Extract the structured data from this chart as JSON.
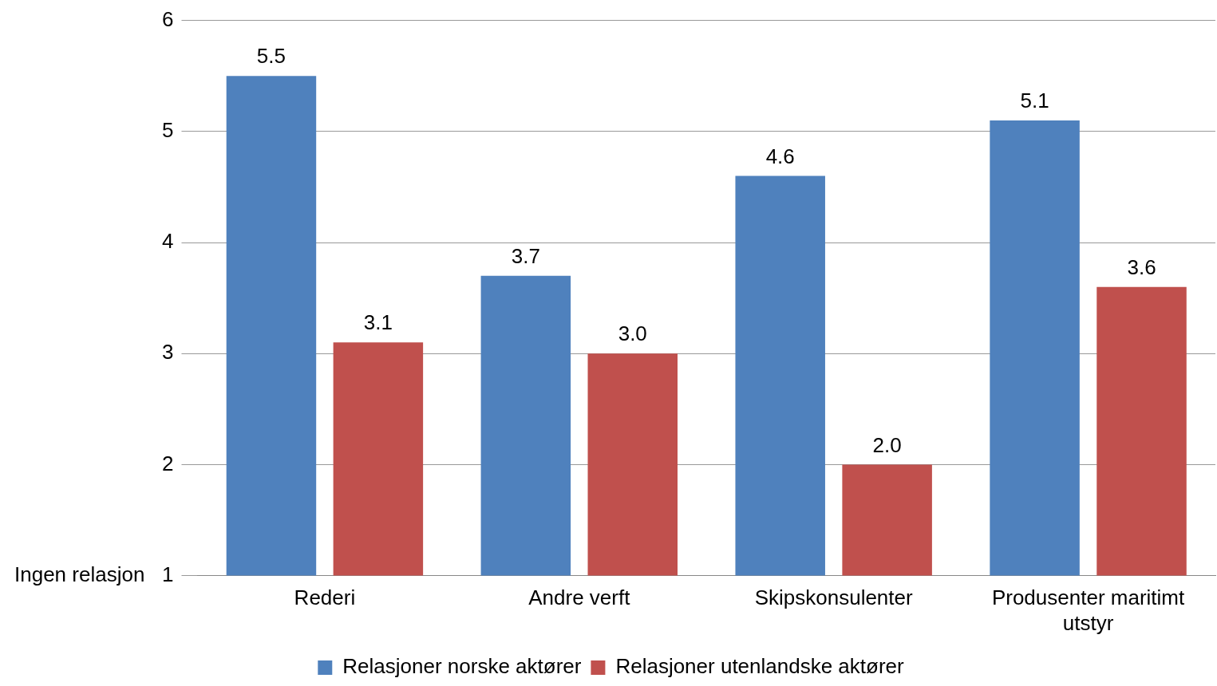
{
  "chart_data": {
    "type": "bar",
    "categories": [
      "Rederi",
      "Andre verft",
      "Skipskonsulenter",
      "Produsenter maritimt utstyr"
    ],
    "series": [
      {
        "name": "Relasjoner norske aktører",
        "color": "#4f81bd",
        "values": [
          5.5,
          3.7,
          4.6,
          5.1
        ],
        "value_labels": [
          "5.5",
          "3.7",
          "4.6",
          "5.1"
        ]
      },
      {
        "name": "Relasjoner utenlandske aktører",
        "color": "#c0504d",
        "values": [
          3.1,
          3.0,
          2.0,
          3.6
        ],
        "value_labels": [
          "3.1",
          "3.0",
          "2.0",
          "3.6"
        ]
      }
    ],
    "ylim": [
      1,
      6
    ],
    "yticks": [
      {
        "value": 1,
        "label": "Ingen relasjon   1"
      },
      2,
      3,
      4,
      5,
      6
    ],
    "grid": "y",
    "legend": "bottom"
  }
}
